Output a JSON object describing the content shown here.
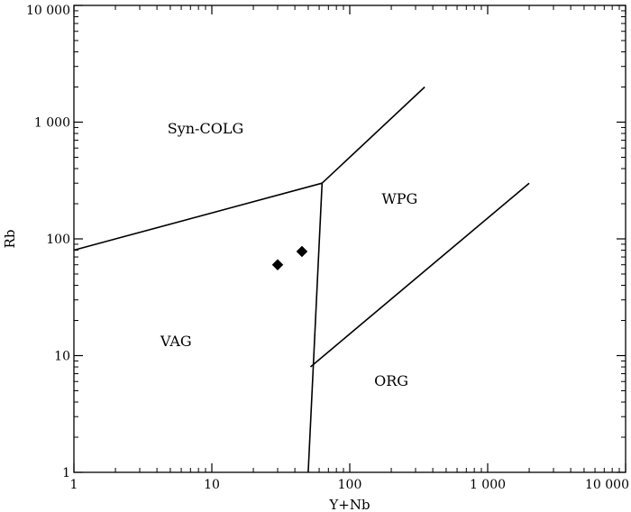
{
  "chart_data": {
    "type": "scatter",
    "title": "",
    "xlabel": "Y+Nb",
    "ylabel": "Rb",
    "x_scale": "log",
    "y_scale": "log",
    "xlim": [
      1,
      10000
    ],
    "ylim": [
      1,
      10000
    ],
    "grid": false,
    "x_ticks": [
      {
        "value": 1,
        "label": "1"
      },
      {
        "value": 10,
        "label": "10"
      },
      {
        "value": 100,
        "label": "100"
      },
      {
        "value": 1000,
        "label": "1 000"
      },
      {
        "value": 10000,
        "label": "10 000"
      }
    ],
    "y_ticks": [
      {
        "value": 1,
        "label": "1"
      },
      {
        "value": 10,
        "label": "10"
      },
      {
        "value": 100,
        "label": "100"
      },
      {
        "value": 1000,
        "label": "1 000"
      },
      {
        "value": 10000,
        "label": "10 000"
      }
    ],
    "boundaries": [
      {
        "points": [
          [
            1,
            80
          ],
          [
            63,
            300
          ]
        ]
      },
      {
        "points": [
          [
            63,
            300
          ],
          [
            350,
            2000
          ]
        ]
      },
      {
        "points": [
          [
            63,
            300
          ],
          [
            50,
            1
          ]
        ]
      },
      {
        "points": [
          [
            52,
            8
          ],
          [
            2000,
            300
          ]
        ]
      }
    ],
    "regions": [
      {
        "label": "Syn-COLG",
        "x": 9,
        "y": 800
      },
      {
        "label": "WPG",
        "x": 230,
        "y": 200
      },
      {
        "label": "VAG",
        "x": 5.5,
        "y": 12
      },
      {
        "label": "ORG",
        "x": 200,
        "y": 5.5
      }
    ],
    "points": [
      {
        "x": 30,
        "y": 60,
        "marker": "diamond"
      },
      {
        "x": 45,
        "y": 78,
        "marker": "diamond"
      }
    ]
  }
}
